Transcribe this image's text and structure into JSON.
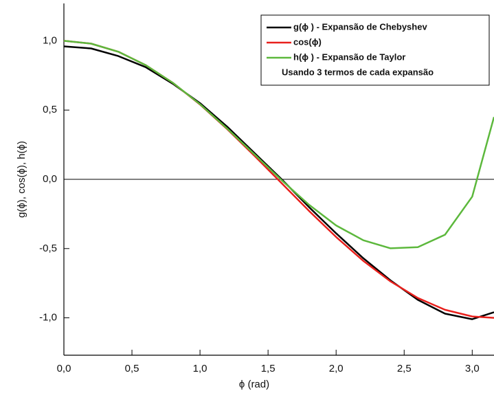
{
  "chart_data": {
    "type": "line",
    "x_label": "ϕ (rad)",
    "y_label": "g(ϕ), cos(ϕ), h(ϕ)",
    "annotation": "Usando 3 termos de cada expansão",
    "x": [
      0,
      0.2,
      0.4,
      0.6,
      0.8,
      1.0,
      1.2,
      1.4,
      1.6,
      1.8,
      2.0,
      2.2,
      2.4,
      2.6,
      2.8,
      3.0,
      3.16
    ],
    "series": [
      {
        "name": "g(ϕ ) - Expansão de Chebyshev",
        "color": "#000000",
        "values": [
          0.96,
          0.945,
          0.89,
          0.81,
          0.69,
          0.55,
          0.38,
          0.19,
          0.0,
          -0.2,
          -0.39,
          -0.57,
          -0.73,
          -0.87,
          -0.97,
          -1.01,
          -0.96
        ]
      },
      {
        "name": "cos(ϕ)",
        "color": "#e8201c",
        "values": [
          1.0,
          0.98,
          0.921,
          0.825,
          0.697,
          0.54,
          0.362,
          0.17,
          -0.029,
          -0.227,
          -0.416,
          -0.589,
          -0.737,
          -0.857,
          -0.942,
          -0.99,
          -1.0
        ]
      },
      {
        "name": "h(ϕ ) - Expansão de Taylor",
        "color": "#5cb83c",
        "values": [
          1.0,
          0.98,
          0.921,
          0.825,
          0.697,
          0.542,
          0.366,
          0.18,
          -0.007,
          -0.183,
          -0.333,
          -0.44,
          -0.498,
          -0.49,
          -0.4,
          -0.125,
          0.45
        ]
      }
    ],
    "xlim": [
      0,
      3.16
    ],
    "ylim": [
      -1.27,
      1.27
    ],
    "xticks": [
      {
        "value": 0,
        "label": "0,0"
      },
      {
        "value": 0.5,
        "label": "0,5"
      },
      {
        "value": 1.0,
        "label": "1,0"
      },
      {
        "value": 1.5,
        "label": "1,5"
      },
      {
        "value": 2.0,
        "label": "2,0"
      },
      {
        "value": 2.5,
        "label": "2,5"
      },
      {
        "value": 3.0,
        "label": "3,0"
      }
    ],
    "yticks": [
      {
        "value": -1.0,
        "label": "-1,0"
      },
      {
        "value": -0.5,
        "label": "-0,5"
      },
      {
        "value": 0,
        "label": "0,0"
      },
      {
        "value": 0.5,
        "label": "0,5"
      },
      {
        "value": 1.0,
        "label": "1,0"
      }
    ],
    "zero_line": true,
    "legend": "top-right"
  }
}
